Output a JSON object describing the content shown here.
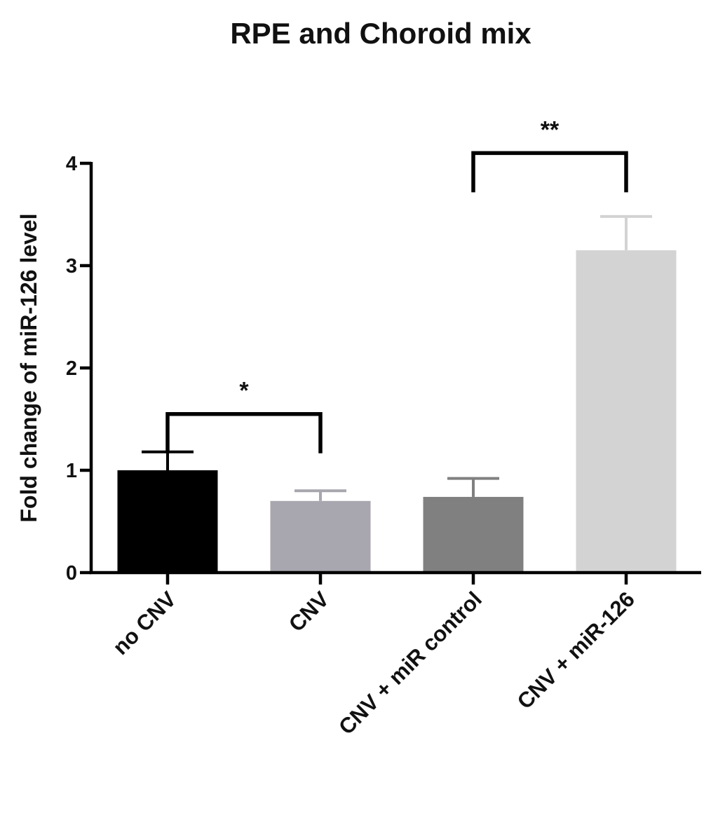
{
  "chart_data": {
    "type": "bar",
    "title": "RPE and Choroid mix",
    "xlabel": "",
    "ylabel": "Fold change of miR-126 level",
    "ylim": [
      0,
      4
    ],
    "yticks": [
      "0",
      "1",
      "2",
      "3",
      "4"
    ],
    "grid": false,
    "legend": "none",
    "categories": [
      "no CNV",
      "CNV",
      "CNV + miR control",
      "CNV + miR-126"
    ],
    "values": [
      1.0,
      0.7,
      0.74,
      3.15
    ],
    "errors": [
      0.18,
      0.1,
      0.18,
      0.33
    ],
    "colors": [
      "#000000",
      "#a8a6ae",
      "#808080",
      "#d3d3d3"
    ],
    "significance": [
      {
        "from": 0,
        "to": 1,
        "label": "*",
        "y": 1.55
      },
      {
        "from": 2,
        "to": 3,
        "label": "**",
        "y": 4.1
      }
    ]
  }
}
